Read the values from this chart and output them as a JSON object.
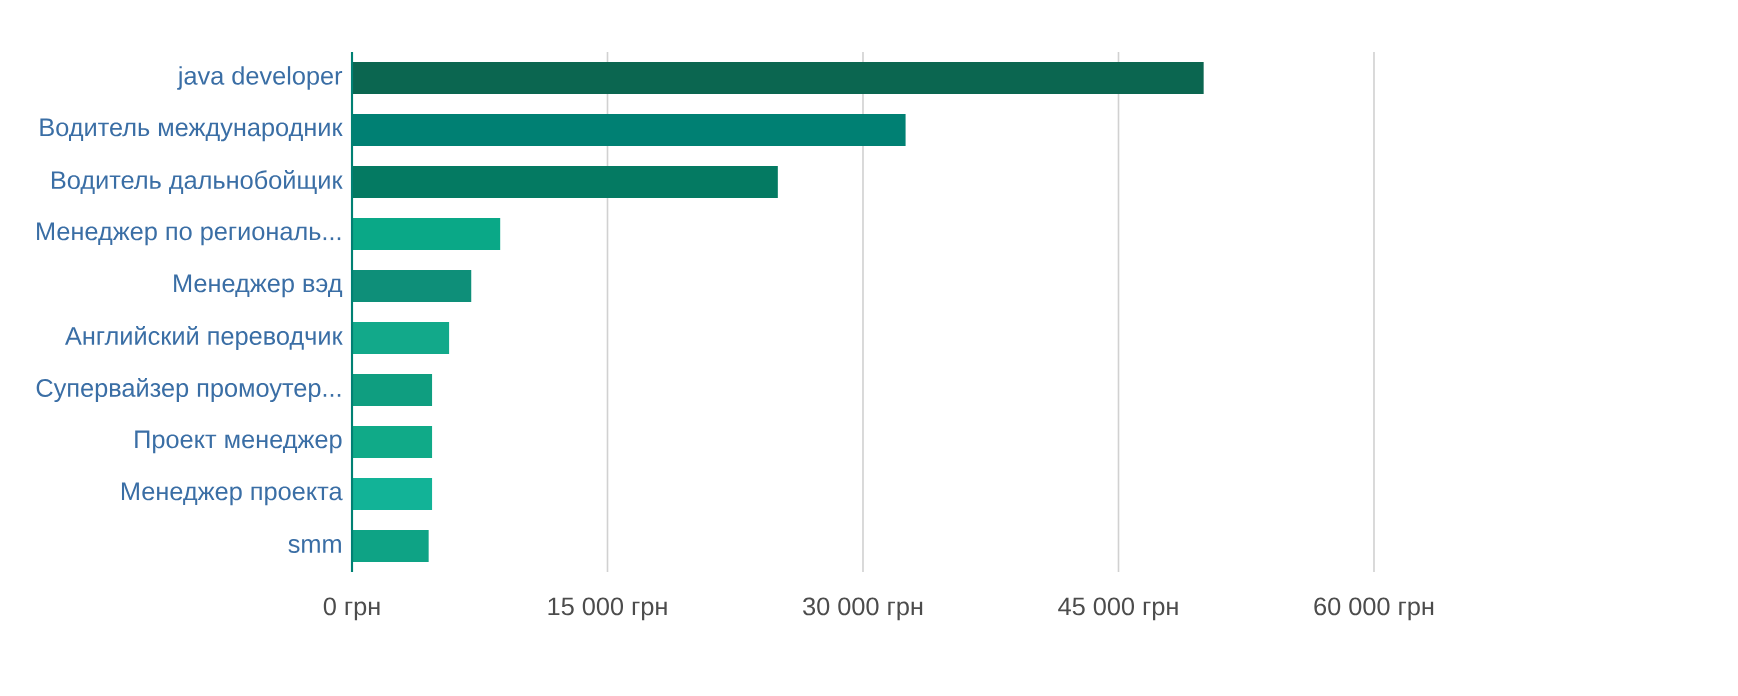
{
  "chart_data": {
    "type": "bar",
    "orientation": "horizontal",
    "categories": [
      "java developer",
      "Водитель международник",
      "Водитель дальнобойщик",
      "Менеджер по региональ...",
      "Менеджер вэд",
      "Английский переводчик",
      "Супервайзер промоутер...",
      "Проект менеджер",
      "Менеджер проекта",
      "smm"
    ],
    "values": [
      50000,
      32500,
      25000,
      8700,
      7000,
      5700,
      4700,
      4700,
      4700,
      4500
    ],
    "colors": [
      "#0b6650",
      "#008073",
      "#047a62",
      "#0aa887",
      "#0e8f79",
      "#12a98a",
      "#0f9e80",
      "#10aa88",
      "#12b397",
      "#0ea385"
    ],
    "xlim": [
      0,
      60000
    ],
    "xticks": [
      {
        "value": 0,
        "label": "0 грн"
      },
      {
        "value": 15000,
        "label": "15 000 грн"
      },
      {
        "value": 30000,
        "label": "30 000 грн"
      },
      {
        "value": 45000,
        "label": "45 000 грн"
      },
      {
        "value": 60000,
        "label": "60 000 грн"
      }
    ],
    "grid": "x"
  }
}
